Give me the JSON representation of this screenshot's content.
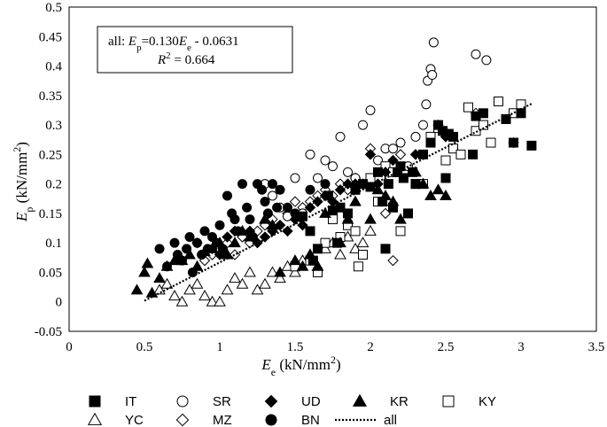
{
  "chart_data": {
    "type": "scatter",
    "xlabel": "E_e (kN/mm²)",
    "ylabel": "E_p (kN/mm²)",
    "xlim": [
      0,
      3.5
    ],
    "ylim": [
      -0.05,
      0.5
    ],
    "x_ticks": [
      "0",
      "0.5",
      "1",
      "1.5",
      "2",
      "2.5",
      "3",
      "3.5"
    ],
    "y_ticks": [
      "-0.05",
      "0",
      "0.05",
      "0.1",
      "0.15",
      "0.2",
      "0.25",
      "0.3",
      "0.35",
      "0.4",
      "0.45",
      "0.5"
    ],
    "grid": false,
    "legend_placement": "bottom",
    "annotation": {
      "line1": "all: E_p=0.130E_e - 0.0631",
      "line2": "R² = 0.664"
    },
    "trendline": {
      "name": "all",
      "slope": 0.13,
      "intercept": -0.0631,
      "x_range": [
        0.5,
        3.07
      ]
    },
    "series": [
      {
        "name": "IT",
        "marker": "square-filled",
        "points": [
          [
            1.55,
            0.145
          ],
          [
            1.6,
            0.12
          ],
          [
            1.62,
            0.07
          ],
          [
            1.65,
            0.09
          ],
          [
            1.72,
            0.18
          ],
          [
            1.75,
            0.155
          ],
          [
            1.78,
            0.1
          ],
          [
            1.8,
            0.16
          ],
          [
            1.85,
            0.15
          ],
          [
            1.9,
            0.19
          ],
          [
            1.95,
            0.2
          ],
          [
            2.0,
            0.195
          ],
          [
            2.05,
            0.22
          ],
          [
            2.08,
            0.17
          ],
          [
            2.1,
            0.09
          ],
          [
            2.12,
            0.2
          ],
          [
            2.15,
            0.16
          ],
          [
            2.18,
            0.22
          ],
          [
            2.2,
            0.23
          ],
          [
            2.22,
            0.21
          ],
          [
            2.25,
            0.15
          ],
          [
            2.28,
            0.22
          ],
          [
            2.3,
            0.2
          ],
          [
            2.35,
            0.25
          ],
          [
            2.4,
            0.27
          ],
          [
            2.45,
            0.3
          ],
          [
            2.48,
            0.29
          ],
          [
            2.5,
            0.21
          ],
          [
            2.52,
            0.285
          ],
          [
            2.55,
            0.28
          ],
          [
            2.68,
            0.25
          ],
          [
            2.7,
            0.315
          ],
          [
            2.75,
            0.32
          ],
          [
            2.9,
            0.31
          ],
          [
            2.95,
            0.27
          ],
          [
            3.0,
            0.32
          ],
          [
            3.07,
            0.265
          ]
        ]
      },
      {
        "name": "SR",
        "marker": "circle-open",
        "points": [
          [
            1.3,
            0.2
          ],
          [
            1.35,
            0.18
          ],
          [
            1.4,
            0.16
          ],
          [
            1.45,
            0.145
          ],
          [
            1.5,
            0.21
          ],
          [
            1.55,
            0.15
          ],
          [
            1.6,
            0.25
          ],
          [
            1.65,
            0.21
          ],
          [
            1.7,
            0.24
          ],
          [
            1.75,
            0.23
          ],
          [
            1.8,
            0.28
          ],
          [
            1.85,
            0.22
          ],
          [
            1.9,
            0.21
          ],
          [
            1.95,
            0.3
          ],
          [
            2.0,
            0.325
          ],
          [
            2.05,
            0.24
          ],
          [
            2.1,
            0.26
          ],
          [
            2.15,
            0.26
          ],
          [
            2.2,
            0.27
          ],
          [
            2.25,
            0.23
          ],
          [
            2.3,
            0.28
          ],
          [
            2.35,
            0.3
          ],
          [
            2.37,
            0.335
          ],
          [
            2.38,
            0.375
          ],
          [
            2.4,
            0.395
          ],
          [
            2.41,
            0.385
          ],
          [
            2.42,
            0.44
          ],
          [
            2.7,
            0.42
          ],
          [
            2.77,
            0.41
          ]
        ]
      },
      {
        "name": "UD",
        "marker": "diamond-filled",
        "points": [
          [
            0.85,
            0.1
          ],
          [
            0.95,
            0.09
          ],
          [
            1.0,
            0.08
          ],
          [
            1.05,
            0.11
          ],
          [
            1.1,
            0.12
          ],
          [
            1.2,
            0.12
          ],
          [
            1.25,
            0.1
          ],
          [
            1.3,
            0.11
          ],
          [
            1.35,
            0.12
          ],
          [
            1.4,
            0.13
          ],
          [
            1.45,
            0.12
          ],
          [
            1.5,
            0.14
          ],
          [
            1.55,
            0.13
          ],
          [
            1.6,
            0.16
          ],
          [
            1.65,
            0.17
          ],
          [
            1.7,
            0.18
          ],
          [
            1.75,
            0.17
          ],
          [
            1.8,
            0.19
          ],
          [
            1.85,
            0.2
          ],
          [
            1.9,
            0.2
          ],
          [
            1.95,
            0.2
          ],
          [
            2.0,
            0.25
          ],
          [
            2.05,
            0.2
          ],
          [
            2.1,
            0.22
          ],
          [
            2.15,
            0.24
          ],
          [
            2.3,
            0.25
          ],
          [
            2.5,
            0.28
          ]
        ]
      },
      {
        "name": "KR",
        "marker": "triangle-filled",
        "points": [
          [
            0.45,
            0.02
          ],
          [
            0.5,
            0.05
          ],
          [
            0.52,
            0.065
          ],
          [
            0.55,
            0.015
          ],
          [
            0.6,
            0.04
          ],
          [
            0.65,
            0.06
          ],
          [
            0.7,
            0.07
          ],
          [
            0.75,
            0.07
          ],
          [
            0.8,
            0.08
          ],
          [
            0.85,
            0.06
          ],
          [
            0.9,
            0.085
          ],
          [
            0.95,
            0.09
          ],
          [
            1.0,
            0.1
          ],
          [
            1.05,
            0.08
          ],
          [
            1.1,
            0.1
          ],
          [
            1.15,
            0.12
          ],
          [
            1.2,
            0.11
          ],
          [
            1.3,
            0.14
          ],
          [
            1.35,
            0.13
          ],
          [
            1.4,
            0.05
          ],
          [
            1.5,
            0.07
          ],
          [
            1.55,
            0.06
          ],
          [
            1.6,
            0.08
          ],
          [
            1.65,
            0.06
          ],
          [
            1.7,
            0.15
          ],
          [
            1.8,
            0.1
          ],
          [
            1.85,
            0.14
          ],
          [
            1.9,
            0.17
          ],
          [
            2.0,
            0.14
          ],
          [
            2.05,
            0.19
          ],
          [
            2.1,
            0.18
          ],
          [
            2.15,
            0.17
          ],
          [
            2.2,
            0.14
          ],
          [
            2.3,
            0.22
          ],
          [
            2.35,
            0.2
          ],
          [
            2.4,
            0.18
          ],
          [
            2.45,
            0.19
          ],
          [
            2.5,
            0.18
          ]
        ]
      },
      {
        "name": "KY",
        "marker": "square-open",
        "points": [
          [
            1.5,
            0.06
          ],
          [
            1.6,
            0.07
          ],
          [
            1.65,
            0.05
          ],
          [
            1.7,
            0.1
          ],
          [
            1.75,
            0.14
          ],
          [
            1.8,
            0.11
          ],
          [
            1.85,
            0.13
          ],
          [
            1.9,
            0.12
          ],
          [
            1.92,
            0.06
          ],
          [
            1.95,
            0.08
          ],
          [
            2.0,
            0.21
          ],
          [
            2.05,
            0.17
          ],
          [
            2.1,
            0.23
          ],
          [
            2.15,
            0.22
          ],
          [
            2.2,
            0.12
          ],
          [
            2.3,
            0.2
          ],
          [
            2.35,
            0.2
          ],
          [
            2.4,
            0.28
          ],
          [
            2.45,
            0.295
          ],
          [
            2.5,
            0.24
          ],
          [
            2.55,
            0.26
          ],
          [
            2.6,
            0.25
          ],
          [
            2.65,
            0.33
          ],
          [
            2.7,
            0.29
          ],
          [
            2.75,
            0.3
          ],
          [
            2.8,
            0.27
          ],
          [
            2.85,
            0.34
          ],
          [
            2.9,
            0.31
          ],
          [
            2.95,
            0.32
          ],
          [
            3.0,
            0.335
          ]
        ]
      },
      {
        "name": "YC",
        "marker": "triangle-open",
        "points": [
          [
            0.6,
            0.02
          ],
          [
            0.65,
            0.03
          ],
          [
            0.7,
            0.01
          ],
          [
            0.75,
            0.0
          ],
          [
            0.8,
            0.02
          ],
          [
            0.85,
            0.03
          ],
          [
            0.9,
            0.01
          ],
          [
            0.95,
            0.0
          ],
          [
            1.0,
            0.0
          ],
          [
            1.05,
            0.02
          ],
          [
            1.1,
            0.04
          ],
          [
            1.15,
            0.03
          ],
          [
            1.2,
            0.05
          ],
          [
            1.25,
            0.02
          ],
          [
            1.3,
            0.03
          ],
          [
            1.35,
            0.05
          ],
          [
            1.4,
            0.04
          ],
          [
            1.45,
            0.06
          ],
          [
            1.5,
            0.05
          ],
          [
            1.55,
            0.07
          ],
          [
            1.6,
            0.08
          ],
          [
            1.65,
            0.06
          ],
          [
            1.7,
            0.09
          ],
          [
            1.75,
            0.1
          ],
          [
            1.8,
            0.08
          ],
          [
            1.85,
            0.11
          ],
          [
            1.9,
            0.09
          ],
          [
            1.95,
            0.1
          ],
          [
            2.0,
            0.12
          ]
        ]
      },
      {
        "name": "MZ",
        "marker": "diamond-open",
        "points": [
          [
            0.9,
            0.07
          ],
          [
            0.95,
            0.08
          ],
          [
            1.0,
            0.09
          ],
          [
            1.05,
            0.1
          ],
          [
            1.1,
            0.08
          ],
          [
            1.15,
            0.11
          ],
          [
            1.2,
            0.1
          ],
          [
            1.25,
            0.12
          ],
          [
            1.3,
            0.13
          ],
          [
            1.35,
            0.14
          ],
          [
            1.4,
            0.13
          ],
          [
            1.45,
            0.15
          ],
          [
            1.5,
            0.17
          ],
          [
            1.55,
            0.16
          ],
          [
            1.6,
            0.17
          ],
          [
            1.65,
            0.18
          ],
          [
            1.7,
            0.19
          ],
          [
            1.75,
            0.18
          ],
          [
            1.8,
            0.2
          ],
          [
            1.85,
            0.19
          ],
          [
            1.9,
            0.21
          ],
          [
            2.0,
            0.26
          ],
          [
            2.1,
            0.15
          ],
          [
            2.15,
            0.07
          ],
          [
            2.2,
            0.25
          ],
          [
            2.45,
            0.3
          ],
          [
            2.7,
            0.32
          ],
          [
            2.95,
            0.27
          ]
        ]
      },
      {
        "name": "BN",
        "marker": "circle-filled",
        "points": [
          [
            0.6,
            0.09
          ],
          [
            0.65,
            0.06
          ],
          [
            0.7,
            0.1
          ],
          [
            0.72,
            0.08
          ],
          [
            0.75,
            0.07
          ],
          [
            0.78,
            0.09
          ],
          [
            0.8,
            0.11
          ],
          [
            0.82,
            0.05
          ],
          [
            0.85,
            0.1
          ],
          [
            0.88,
            0.08
          ],
          [
            0.9,
            0.12
          ],
          [
            0.92,
            0.09
          ],
          [
            0.95,
            0.11
          ],
          [
            0.98,
            0.1
          ],
          [
            1.0,
            0.13
          ],
          [
            1.02,
            0.09
          ],
          [
            1.05,
            0.18
          ],
          [
            1.08,
            0.15
          ],
          [
            1.1,
            0.14
          ],
          [
            1.12,
            0.12
          ],
          [
            1.15,
            0.2
          ],
          [
            1.18,
            0.16
          ],
          [
            1.2,
            0.14
          ],
          [
            1.22,
            0.11
          ],
          [
            1.25,
            0.2
          ],
          [
            1.28,
            0.19
          ],
          [
            1.3,
            0.17
          ],
          [
            1.32,
            0.15
          ],
          [
            1.35,
            0.2
          ],
          [
            1.38,
            0.16
          ],
          [
            1.4,
            0.19
          ],
          [
            1.45,
            0.16
          ],
          [
            1.5,
            0.15
          ],
          [
            1.6,
            0.19
          ],
          [
            1.7,
            0.2
          ]
        ]
      }
    ]
  }
}
